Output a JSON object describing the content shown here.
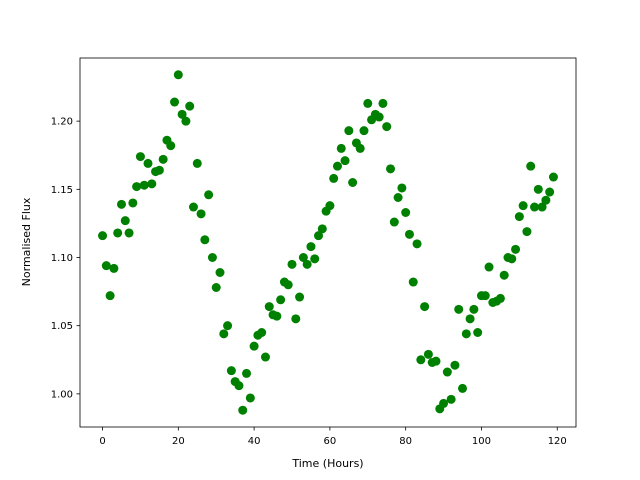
{
  "chart_data": {
    "type": "scatter",
    "xlabel": "Time (Hours)",
    "ylabel": "Normalised Flux",
    "x": [
      0,
      1,
      2,
      3,
      4,
      5,
      6,
      7,
      8,
      9,
      10,
      11,
      12,
      13,
      14,
      15,
      16,
      17,
      18,
      19,
      20,
      21,
      22,
      23,
      24,
      25,
      26,
      27,
      28,
      29,
      30,
      31,
      32,
      33,
      34,
      35,
      36,
      37,
      38,
      39,
      40,
      41,
      42,
      43,
      44,
      45,
      46,
      47,
      48,
      49,
      50,
      51,
      52,
      53,
      54,
      55,
      56,
      57,
      58,
      59,
      60,
      61,
      62,
      63,
      64,
      65,
      66,
      67,
      68,
      69,
      70,
      71,
      72,
      73,
      74,
      75,
      76,
      77,
      78,
      79,
      80,
      81,
      82,
      83,
      84,
      85,
      86,
      87,
      88,
      89,
      90,
      91,
      92,
      93,
      94,
      95,
      96,
      97,
      98,
      99,
      100,
      101,
      102,
      103,
      104,
      105,
      106,
      107,
      108,
      109,
      110,
      111,
      112,
      113,
      114,
      115,
      116,
      117,
      118,
      119
    ],
    "series": [
      {
        "color": "#008000",
        "values": [
          1.116,
          1.094,
          1.072,
          1.092,
          1.118,
          1.139,
          1.127,
          1.118,
          1.14,
          1.152,
          1.174,
          1.153,
          1.169,
          1.154,
          1.163,
          1.164,
          1.172,
          1.186,
          1.182,
          1.214,
          1.234,
          1.205,
          1.2,
          1.211,
          1.137,
          1.169,
          1.132,
          1.113,
          1.146,
          1.1,
          1.078,
          1.089,
          1.044,
          1.05,
          1.017,
          1.009,
          1.006,
          0.988,
          1.015,
          0.997,
          1.035,
          1.043,
          1.045,
          1.027,
          1.064,
          1.058,
          1.057,
          1.069,
          1.082,
          1.08,
          1.095,
          1.055,
          1.071,
          1.1,
          1.095,
          1.108,
          1.099,
          1.116,
          1.121,
          1.134,
          1.138,
          1.158,
          1.167,
          1.18,
          1.171,
          1.193,
          1.155,
          1.184,
          1.18,
          1.193,
          1.213,
          1.201,
          1.205,
          1.203,
          1.213,
          1.196,
          1.165,
          1.126,
          1.144,
          1.151,
          1.133,
          1.117,
          1.082,
          1.11,
          1.025,
          1.064,
          1.029,
          1.023,
          1.024,
          0.989,
          0.993,
          1.016,
          0.996,
          1.021,
          1.062,
          1.004,
          1.044,
          1.055,
          1.062,
          1.045,
          1.072,
          1.072,
          1.093,
          1.067,
          1.068,
          1.07,
          1.087,
          1.1,
          1.099,
          1.106,
          1.13,
          1.138,
          1.119,
          1.167,
          1.137,
          1.15,
          1.137,
          1.142,
          1.148,
          1.159
        ]
      }
    ],
    "xlim": [
      -5.95,
      124.95
    ],
    "ylim": [
      0.9757,
      1.2463
    ],
    "xticks": [
      0,
      20,
      40,
      60,
      80,
      100,
      120
    ],
    "yticks": [
      {
        "value": 1.0,
        "label": "1.00"
      },
      {
        "value": 1.05,
        "label": "1.05"
      },
      {
        "value": 1.1,
        "label": "1.10"
      },
      {
        "value": 1.15,
        "label": "1.15"
      },
      {
        "value": 1.2,
        "label": "1.20"
      }
    ],
    "grid": false
  }
}
